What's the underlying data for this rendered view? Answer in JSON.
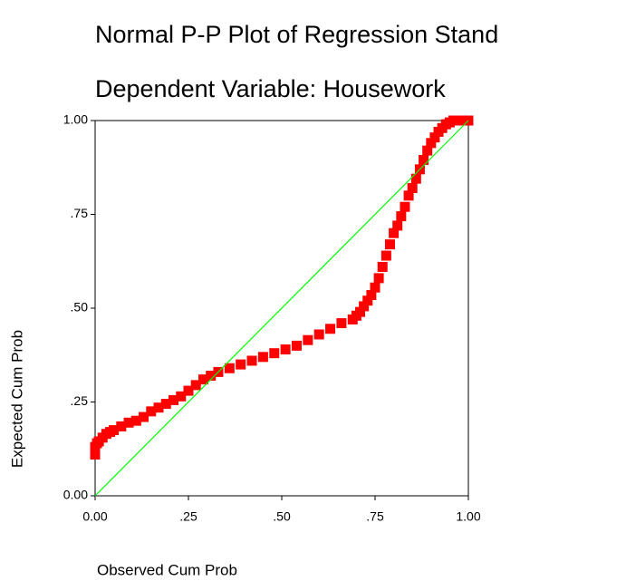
{
  "chart_data": {
    "type": "scatter",
    "title": "Normal P-P Plot of Regression Stand",
    "subtitle": "Dependent Variable: Housework",
    "x_label": "Observed Cum Prob",
    "y_label": "Expected Cum Prob",
    "color": "#ff0000",
    "x": [
      0,
      0,
      0,
      0.005,
      0.01,
      0.02,
      0.03,
      0.04,
      0.05,
      0.07,
      0.09,
      0.11,
      0.13,
      0.15,
      0.17,
      0.19,
      0.21,
      0.23,
      0.25,
      0.27,
      0.29,
      0.31,
      0.33,
      0.36,
      0.39,
      0.42,
      0.45,
      0.48,
      0.51,
      0.54,
      0.57,
      0.6,
      0.63,
      0.66,
      0.69,
      0.7,
      0.71,
      0.72,
      0.73,
      0.74,
      0.75,
      0.76,
      0.77,
      0.78,
      0.79,
      0.8,
      0.81,
      0.82,
      0.83,
      0.84,
      0.85,
      0.86,
      0.87,
      0.88,
      0.89,
      0.9,
      0.91,
      0.92,
      0.93,
      0.94,
      0.95,
      0.96,
      0.97,
      0.98,
      0.99,
      1.0
    ],
    "values": [
      0.11,
      0.12,
      0.13,
      0.14,
      0.145,
      0.155,
      0.165,
      0.17,
      0.175,
      0.185,
      0.195,
      0.2,
      0.21,
      0.225,
      0.235,
      0.245,
      0.255,
      0.265,
      0.28,
      0.295,
      0.31,
      0.32,
      0.33,
      0.34,
      0.35,
      0.36,
      0.37,
      0.38,
      0.39,
      0.4,
      0.415,
      0.43,
      0.445,
      0.46,
      0.47,
      0.48,
      0.49,
      0.505,
      0.52,
      0.535,
      0.555,
      0.58,
      0.61,
      0.64,
      0.67,
      0.7,
      0.72,
      0.745,
      0.77,
      0.8,
      0.82,
      0.845,
      0.87,
      0.895,
      0.92,
      0.94,
      0.955,
      0.97,
      0.98,
      0.99,
      0.995,
      1,
      1,
      1,
      1,
      1
    ],
    "reference_line": {
      "x": [
        0,
        1
      ],
      "values": [
        0,
        1
      ],
      "color": "#00ff00"
    },
    "xlim": [
      0,
      1
    ],
    "ylim": [
      0,
      1
    ],
    "xticks": [
      {
        "value": 0,
        "label": "0.00"
      },
      {
        "value": 0.25,
        "label": ".25"
      },
      {
        "value": 0.5,
        "label": ".50"
      },
      {
        "value": 0.75,
        "label": ".75"
      },
      {
        "value": 1,
        "label": "1.00"
      }
    ],
    "yticks": [
      {
        "value": 0,
        "label": "0.00"
      },
      {
        "value": 0.25,
        "label": ".25"
      },
      {
        "value": 0.5,
        "label": ".50"
      },
      {
        "value": 0.75,
        "label": ".75"
      },
      {
        "value": 1,
        "label": "1.00"
      }
    ]
  }
}
